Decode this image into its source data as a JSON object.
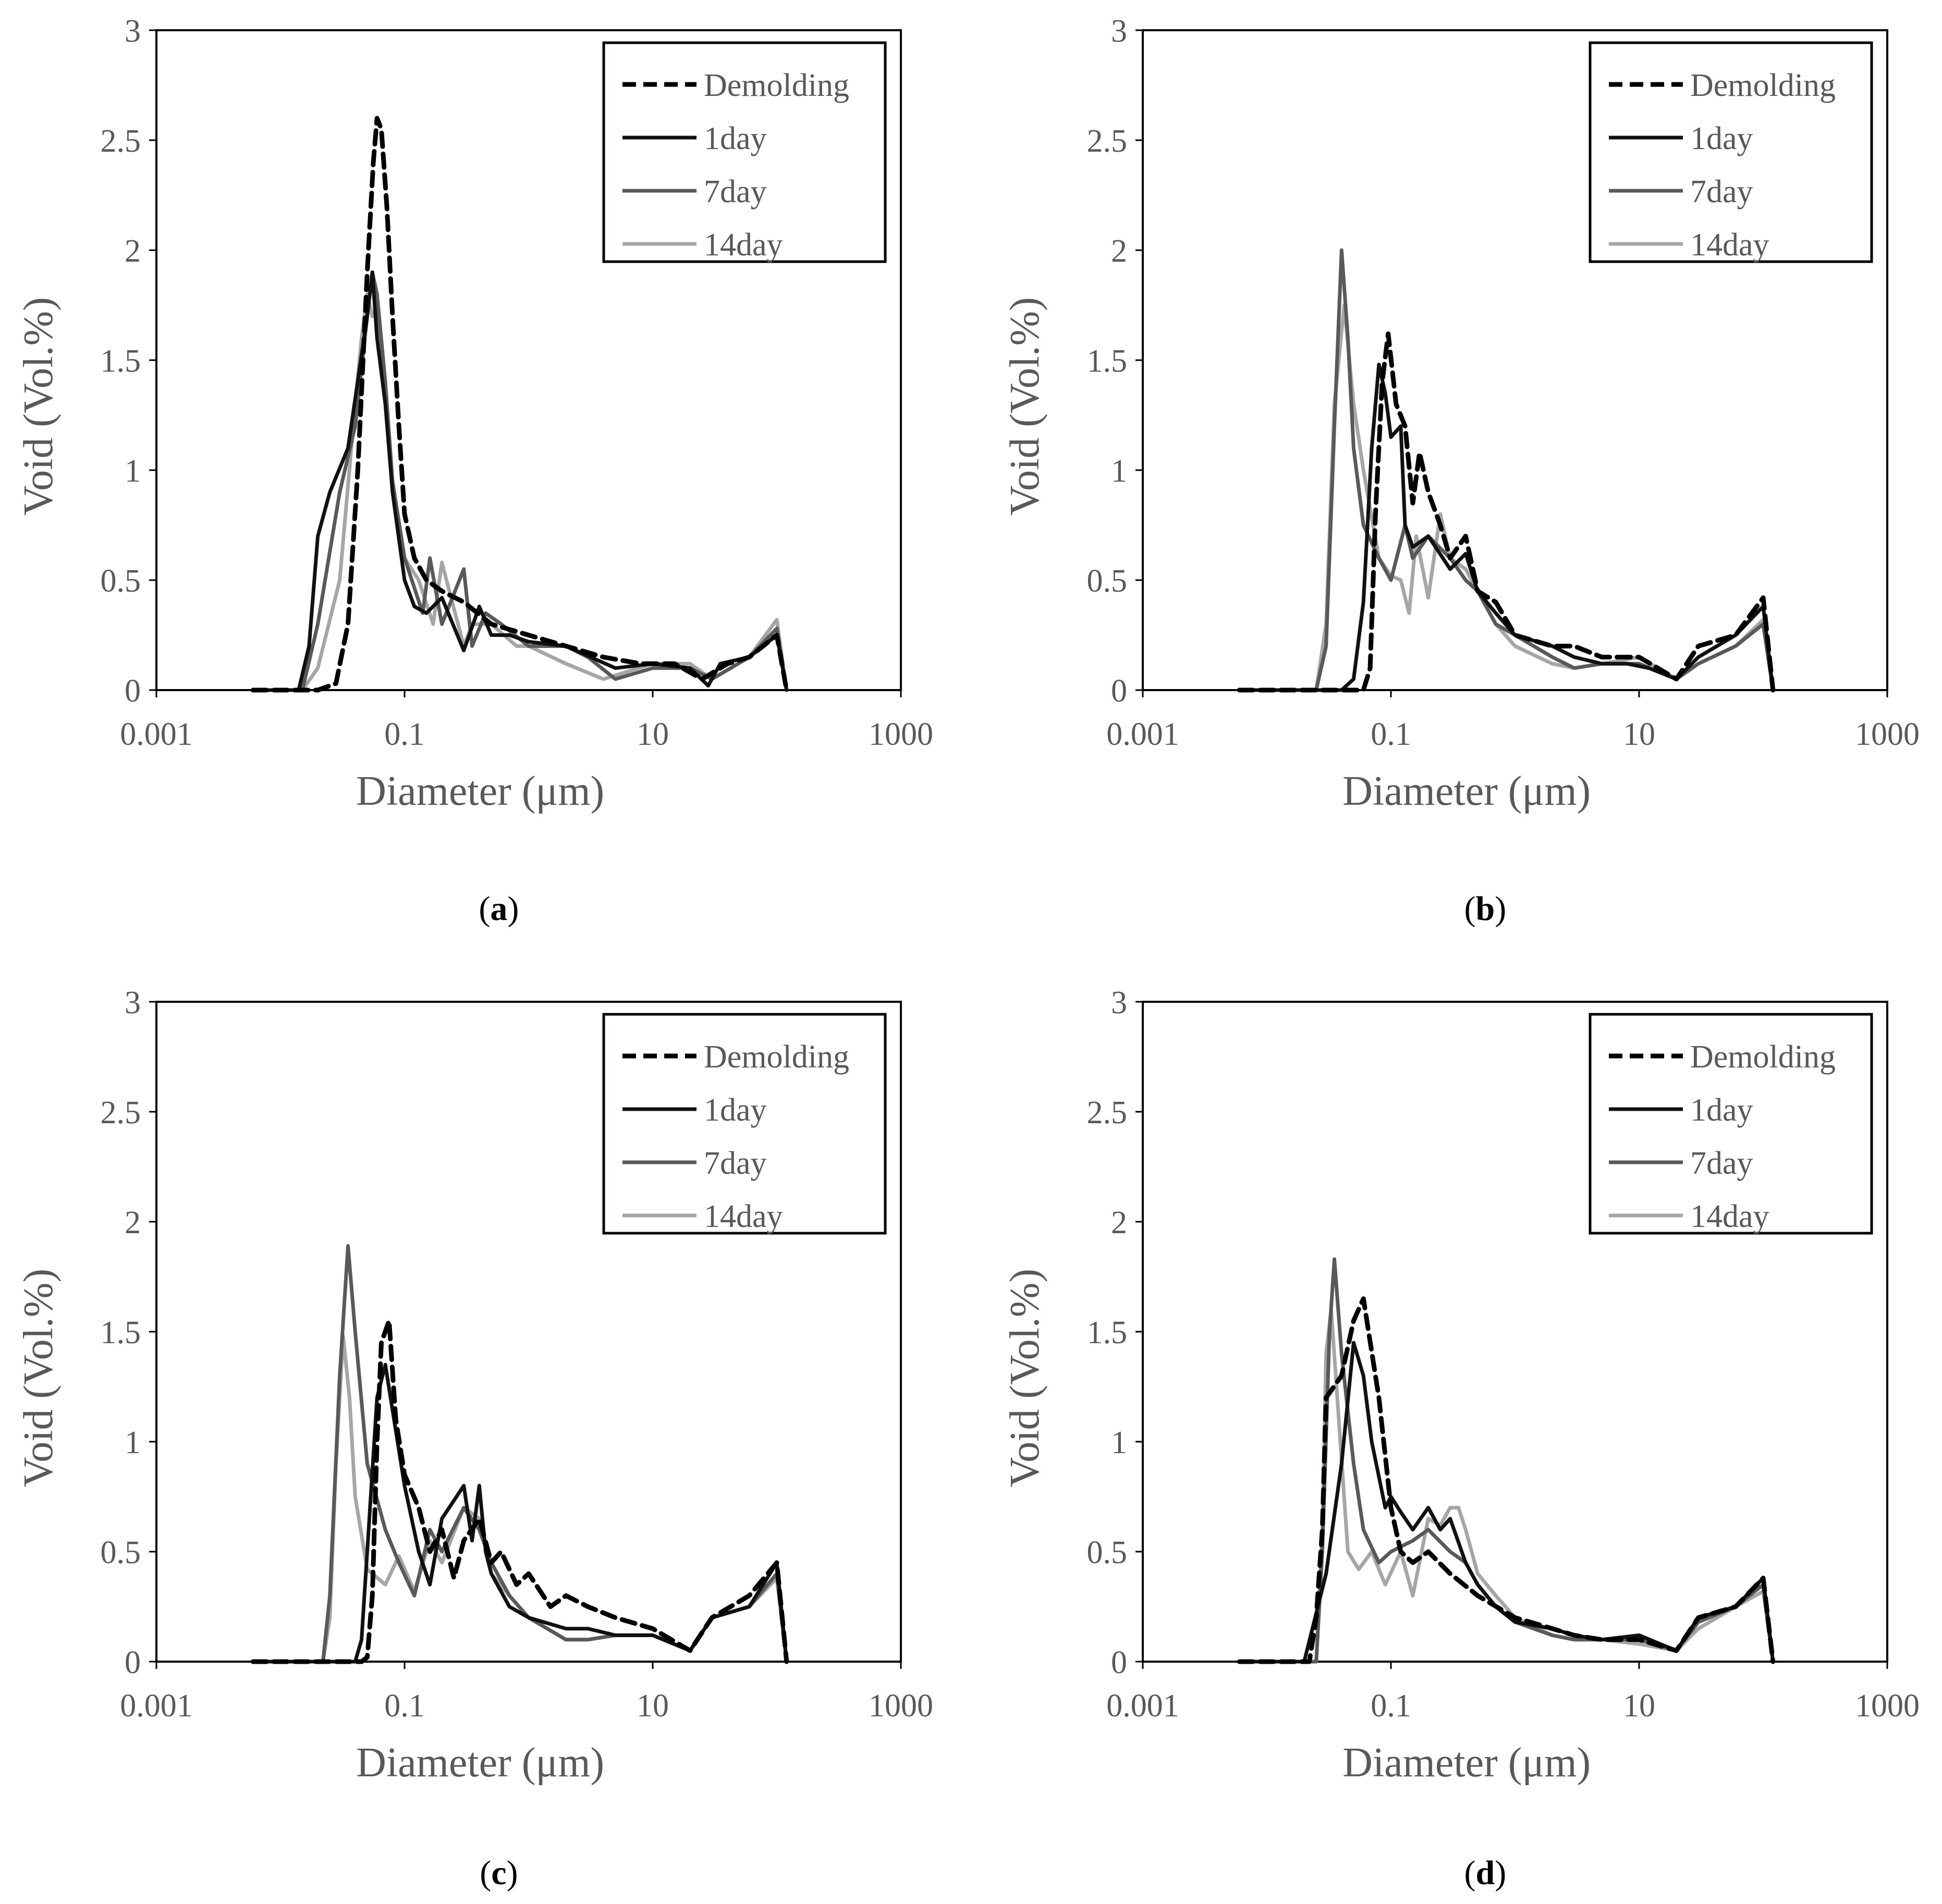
{
  "figure": {
    "panel_labels": [
      "(a)",
      "(b)",
      "(c)",
      "(d)"
    ]
  },
  "series_styles": {
    "Demolding": {
      "color": "#000000",
      "dashed": true
    },
    "1day": {
      "color": "#111111",
      "dashed": false
    },
    "7day": {
      "color": "#595959",
      "dashed": false
    },
    "14day": {
      "color": "#a6a6a6",
      "dashed": false
    }
  },
  "chart_data": [
    {
      "panel": "a",
      "type": "line",
      "xscale": "log",
      "xlabel": "Diameter (μm)",
      "ylabel": "Void (Vol.%)",
      "xlim": [
        0.001,
        1000
      ],
      "ylim": [
        0,
        3
      ],
      "xticks": [
        "0.001",
        "0.1",
        "10",
        "1000"
      ],
      "yticks": [
        "0",
        "0.5",
        "1",
        "1.5",
        "2",
        "2.5",
        "3"
      ],
      "legend": {
        "position": "top-right",
        "entries": [
          "Demolding",
          "1day",
          "7day",
          "14day"
        ]
      },
      "series": [
        {
          "name": "Demolding",
          "x": [
            0.006,
            0.02,
            0.028,
            0.035,
            0.042,
            0.05,
            0.056,
            0.06,
            0.065,
            0.072,
            0.08,
            0.09,
            0.1,
            0.12,
            0.15,
            0.2,
            0.3,
            0.5,
            1,
            2,
            4,
            8,
            15,
            25,
            40,
            60,
            100,
            120
          ],
          "y": [
            0,
            0,
            0.03,
            0.3,
            1.0,
            1.9,
            2.4,
            2.6,
            2.55,
            2.2,
            1.7,
            1.2,
            0.8,
            0.6,
            0.5,
            0.45,
            0.4,
            0.3,
            0.25,
            0.2,
            0.15,
            0.12,
            0.12,
            0.05,
            0.12,
            0.15,
            0.25,
            0
          ]
        },
        {
          "name": "1day",
          "x": [
            0.006,
            0.014,
            0.017,
            0.02,
            0.025,
            0.035,
            0.05,
            0.055,
            0.06,
            0.07,
            0.08,
            0.1,
            0.12,
            0.15,
            0.2,
            0.3,
            0.4,
            0.5,
            0.7,
            1,
            2,
            5,
            10,
            20,
            28,
            35,
            60,
            100,
            120
          ],
          "y": [
            0,
            0,
            0.2,
            0.7,
            0.9,
            1.1,
            1.7,
            1.9,
            1.6,
            1.3,
            0.9,
            0.5,
            0.38,
            0.35,
            0.42,
            0.18,
            0.38,
            0.25,
            0.25,
            0.22,
            0.2,
            0.1,
            0.12,
            0.1,
            0.02,
            0.12,
            0.15,
            0.25,
            0
          ]
        },
        {
          "name": "7day",
          "x": [
            0.006,
            0.015,
            0.02,
            0.03,
            0.04,
            0.05,
            0.055,
            0.06,
            0.07,
            0.08,
            0.1,
            0.14,
            0.16,
            0.2,
            0.3,
            0.35,
            0.45,
            0.6,
            1,
            2,
            3,
            5,
            10,
            20,
            30,
            60,
            100,
            120
          ],
          "y": [
            0,
            0,
            0.3,
            0.9,
            1.2,
            1.7,
            1.9,
            1.8,
            1.4,
            0.95,
            0.6,
            0.35,
            0.6,
            0.3,
            0.55,
            0.2,
            0.35,
            0.3,
            0.2,
            0.2,
            0.15,
            0.05,
            0.1,
            0.1,
            0.05,
            0.15,
            0.28,
            0
          ]
        },
        {
          "name": "14day",
          "x": [
            0.006,
            0.015,
            0.02,
            0.03,
            0.04,
            0.045,
            0.05,
            0.055,
            0.06,
            0.07,
            0.08,
            0.1,
            0.13,
            0.17,
            0.2,
            0.3,
            0.35,
            0.5,
            0.8,
            1,
            2,
            4,
            10,
            20,
            30,
            60,
            100,
            120
          ],
          "y": [
            0,
            0,
            0.1,
            0.5,
            1.3,
            1.6,
            1.8,
            1.7,
            1.7,
            1.3,
            0.95,
            0.6,
            0.5,
            0.3,
            0.58,
            0.2,
            0.3,
            0.3,
            0.2,
            0.2,
            0.12,
            0.05,
            0.12,
            0.12,
            0.05,
            0.15,
            0.32,
            0
          ]
        }
      ]
    },
    {
      "panel": "b",
      "type": "line",
      "xscale": "log",
      "xlabel": "Diameter (μm)",
      "ylabel": "Void (Vol.%)",
      "xlim": [
        0.001,
        1000
      ],
      "ylim": [
        0,
        3
      ],
      "xticks": [
        "0.001",
        "0.1",
        "10",
        "1000"
      ],
      "yticks": [
        "0",
        "0.5",
        "1",
        "1.5",
        "2",
        "2.5",
        "3"
      ],
      "legend": {
        "position": "top-right",
        "entries": [
          "Demolding",
          "1day",
          "7day",
          "14day"
        ]
      },
      "series": [
        {
          "name": "Demolding",
          "x": [
            0.006,
            0.06,
            0.068,
            0.075,
            0.085,
            0.095,
            0.11,
            0.13,
            0.15,
            0.17,
            0.2,
            0.25,
            0.3,
            0.4,
            0.5,
            0.7,
            1,
            2,
            3,
            5,
            10,
            20,
            30,
            60,
            100,
            120
          ],
          "y": [
            0,
            0,
            0.1,
            0.8,
            1.4,
            1.62,
            1.3,
            1.2,
            0.85,
            1.08,
            0.9,
            0.75,
            0.6,
            0.7,
            0.45,
            0.4,
            0.25,
            0.2,
            0.2,
            0.15,
            0.15,
            0.05,
            0.2,
            0.25,
            0.42,
            0
          ]
        },
        {
          "name": "1day",
          "x": [
            0.006,
            0.04,
            0.05,
            0.06,
            0.07,
            0.08,
            0.09,
            0.1,
            0.12,
            0.13,
            0.15,
            0.2,
            0.3,
            0.4,
            0.5,
            0.7,
            1,
            2,
            3,
            5,
            8,
            12,
            20,
            30,
            60,
            100,
            120
          ],
          "y": [
            0,
            0,
            0.05,
            0.4,
            1.1,
            1.48,
            1.35,
            1.15,
            1.2,
            0.75,
            0.65,
            0.7,
            0.55,
            0.62,
            0.45,
            0.35,
            0.25,
            0.2,
            0.15,
            0.12,
            0.12,
            0.1,
            0.05,
            0.15,
            0.25,
            0.38,
            0
          ]
        },
        {
          "name": "7day",
          "x": [
            0.006,
            0.025,
            0.03,
            0.035,
            0.04,
            0.045,
            0.05,
            0.06,
            0.08,
            0.1,
            0.13,
            0.15,
            0.2,
            0.3,
            0.4,
            0.5,
            0.7,
            1,
            2,
            3,
            5,
            10,
            20,
            30,
            60,
            100,
            120
          ],
          "y": [
            0,
            0,
            0.2,
            1.2,
            2.0,
            1.6,
            1.1,
            0.75,
            0.6,
            0.5,
            0.75,
            0.6,
            0.7,
            0.6,
            0.5,
            0.45,
            0.3,
            0.25,
            0.15,
            0.1,
            0.12,
            0.12,
            0.05,
            0.12,
            0.2,
            0.3,
            0
          ]
        },
        {
          "name": "14day",
          "x": [
            0.006,
            0.025,
            0.03,
            0.035,
            0.042,
            0.05,
            0.06,
            0.08,
            0.1,
            0.12,
            0.14,
            0.16,
            0.2,
            0.25,
            0.3,
            0.4,
            0.5,
            0.7,
            1,
            2,
            3,
            5,
            10,
            20,
            30,
            60,
            100,
            120
          ],
          "y": [
            0,
            0,
            0.3,
            1.3,
            1.75,
            1.3,
            1.0,
            0.6,
            0.52,
            0.5,
            0.35,
            0.7,
            0.42,
            0.8,
            0.6,
            0.55,
            0.45,
            0.3,
            0.2,
            0.12,
            0.1,
            0.12,
            0.15,
            0.05,
            0.12,
            0.2,
            0.32,
            0
          ]
        }
      ]
    },
    {
      "panel": "c",
      "type": "line",
      "xscale": "log",
      "xlabel": "Diameter (μm)",
      "ylabel": "Void (Vol.%)",
      "xlim": [
        0.001,
        1000
      ],
      "ylim": [
        0,
        3
      ],
      "xticks": [
        "0.001",
        "0.1",
        "10",
        "1000"
      ],
      "yticks": [
        "0",
        "0.5",
        "1",
        "1.5",
        "2",
        "2.5",
        "3"
      ],
      "legend": {
        "position": "top-right",
        "entries": [
          "Demolding",
          "1day",
          "7day",
          "14day"
        ]
      },
      "series": [
        {
          "name": "Demolding",
          "x": [
            0.006,
            0.045,
            0.05,
            0.055,
            0.06,
            0.065,
            0.075,
            0.085,
            0.1,
            0.13,
            0.16,
            0.2,
            0.25,
            0.3,
            0.4,
            0.5,
            0.6,
            0.8,
            1,
            1.5,
            2,
            3,
            5,
            10,
            20,
            30,
            60,
            100,
            120
          ],
          "y": [
            0,
            0,
            0.02,
            0.3,
            1.0,
            1.45,
            1.55,
            1.1,
            0.85,
            0.7,
            0.5,
            0.6,
            0.38,
            0.55,
            0.65,
            0.45,
            0.5,
            0.35,
            0.4,
            0.25,
            0.3,
            0.25,
            0.2,
            0.15,
            0.05,
            0.2,
            0.3,
            0.45,
            0
          ]
        },
        {
          "name": "1day",
          "x": [
            0.006,
            0.04,
            0.045,
            0.05,
            0.06,
            0.07,
            0.085,
            0.1,
            0.13,
            0.16,
            0.2,
            0.3,
            0.35,
            0.4,
            0.45,
            0.5,
            0.7,
            1,
            2,
            3,
            5,
            10,
            20,
            30,
            60,
            100,
            120
          ],
          "y": [
            0,
            0,
            0.1,
            0.5,
            1.2,
            1.35,
            1.05,
            0.8,
            0.5,
            0.35,
            0.65,
            0.8,
            0.55,
            0.8,
            0.5,
            0.4,
            0.25,
            0.2,
            0.15,
            0.15,
            0.12,
            0.12,
            0.05,
            0.2,
            0.25,
            0.45,
            0
          ]
        },
        {
          "name": "7day",
          "x": [
            0.006,
            0.022,
            0.025,
            0.03,
            0.035,
            0.04,
            0.05,
            0.07,
            0.09,
            0.12,
            0.16,
            0.2,
            0.3,
            0.4,
            0.5,
            0.7,
            1,
            2,
            3,
            5,
            10,
            20,
            30,
            60,
            100,
            120
          ],
          "y": [
            0,
            0,
            0.3,
            1.3,
            1.89,
            1.5,
            0.9,
            0.6,
            0.45,
            0.3,
            0.6,
            0.5,
            0.7,
            0.6,
            0.45,
            0.3,
            0.2,
            0.1,
            0.1,
            0.12,
            0.12,
            0.05,
            0.2,
            0.25,
            0.4,
            0
          ]
        },
        {
          "name": "14day",
          "x": [
            0.006,
            0.022,
            0.025,
            0.028,
            0.032,
            0.036,
            0.04,
            0.05,
            0.07,
            0.09,
            0.12,
            0.16,
            0.2,
            0.3,
            0.4,
            0.5,
            0.7,
            1,
            2,
            3,
            5,
            10,
            20,
            30,
            60,
            100,
            120
          ],
          "y": [
            0,
            0,
            0.2,
            0.9,
            1.48,
            1.2,
            0.75,
            0.42,
            0.35,
            0.48,
            0.32,
            0.55,
            0.45,
            0.7,
            0.65,
            0.4,
            0.3,
            0.2,
            0.1,
            0.1,
            0.12,
            0.12,
            0.05,
            0.2,
            0.25,
            0.38,
            0
          ]
        }
      ]
    },
    {
      "panel": "d",
      "type": "line",
      "xscale": "log",
      "xlabel": "Diameter (μm)",
      "ylabel": "Void (Vol.%)",
      "xlim": [
        0.001,
        1000
      ],
      "ylim": [
        0,
        3
      ],
      "xticks": [
        "0.001",
        "0.1",
        "10",
        "1000"
      ],
      "yticks": [
        "0",
        "0.5",
        "1",
        "1.5",
        "2",
        "2.5",
        "3"
      ],
      "legend": {
        "position": "top-right",
        "entries": [
          "Demolding",
          "1day",
          "7day",
          "14day"
        ]
      },
      "series": [
        {
          "name": "Demolding",
          "x": [
            0.006,
            0.022,
            0.025,
            0.028,
            0.03,
            0.04,
            0.05,
            0.06,
            0.08,
            0.1,
            0.12,
            0.15,
            0.2,
            0.3,
            0.5,
            1,
            2,
            3,
            5,
            10,
            20,
            30,
            60,
            100,
            120
          ],
          "y": [
            0,
            0,
            0.2,
            0.6,
            1.2,
            1.3,
            1.55,
            1.65,
            1.2,
            0.7,
            0.5,
            0.45,
            0.5,
            0.4,
            0.3,
            0.2,
            0.15,
            0.12,
            0.1,
            0.1,
            0.05,
            0.2,
            0.25,
            0.38,
            0
          ]
        },
        {
          "name": "1day",
          "x": [
            0.006,
            0.02,
            0.03,
            0.04,
            0.05,
            0.06,
            0.07,
            0.09,
            0.1,
            0.12,
            0.15,
            0.2,
            0.25,
            0.3,
            0.4,
            0.5,
            0.7,
            1,
            2,
            3,
            5,
            10,
            20,
            30,
            60,
            100,
            120
          ],
          "y": [
            0,
            0,
            0.4,
            0.9,
            1.45,
            1.3,
            1.0,
            0.7,
            0.75,
            0.68,
            0.6,
            0.7,
            0.6,
            0.65,
            0.45,
            0.35,
            0.25,
            0.18,
            0.15,
            0.12,
            0.1,
            0.12,
            0.05,
            0.2,
            0.25,
            0.38,
            0
          ]
        },
        {
          "name": "7day",
          "x": [
            0.006,
            0.025,
            0.028,
            0.032,
            0.035,
            0.04,
            0.05,
            0.06,
            0.08,
            0.1,
            0.15,
            0.2,
            0.3,
            0.4,
            0.5,
            0.7,
            1,
            2,
            3,
            5,
            10,
            20,
            30,
            60,
            100,
            120
          ],
          "y": [
            0,
            0,
            0.5,
            1.5,
            1.83,
            1.4,
            0.9,
            0.6,
            0.45,
            0.5,
            0.55,
            0.6,
            0.5,
            0.45,
            0.35,
            0.25,
            0.18,
            0.12,
            0.1,
            0.1,
            0.1,
            0.05,
            0.18,
            0.25,
            0.35,
            0
          ]
        },
        {
          "name": "14day",
          "x": [
            0.006,
            0.025,
            0.028,
            0.03,
            0.033,
            0.038,
            0.045,
            0.055,
            0.07,
            0.09,
            0.12,
            0.15,
            0.2,
            0.25,
            0.3,
            0.35,
            0.4,
            0.5,
            0.7,
            1,
            2,
            3,
            5,
            10,
            20,
            30,
            60,
            100,
            120
          ],
          "y": [
            0,
            0,
            0.6,
            1.4,
            1.6,
            1.1,
            0.5,
            0.42,
            0.5,
            0.35,
            0.5,
            0.3,
            0.65,
            0.62,
            0.7,
            0.7,
            0.6,
            0.4,
            0.3,
            0.2,
            0.12,
            0.1,
            0.1,
            0.08,
            0.05,
            0.15,
            0.25,
            0.32,
            0
          ]
        }
      ]
    }
  ]
}
